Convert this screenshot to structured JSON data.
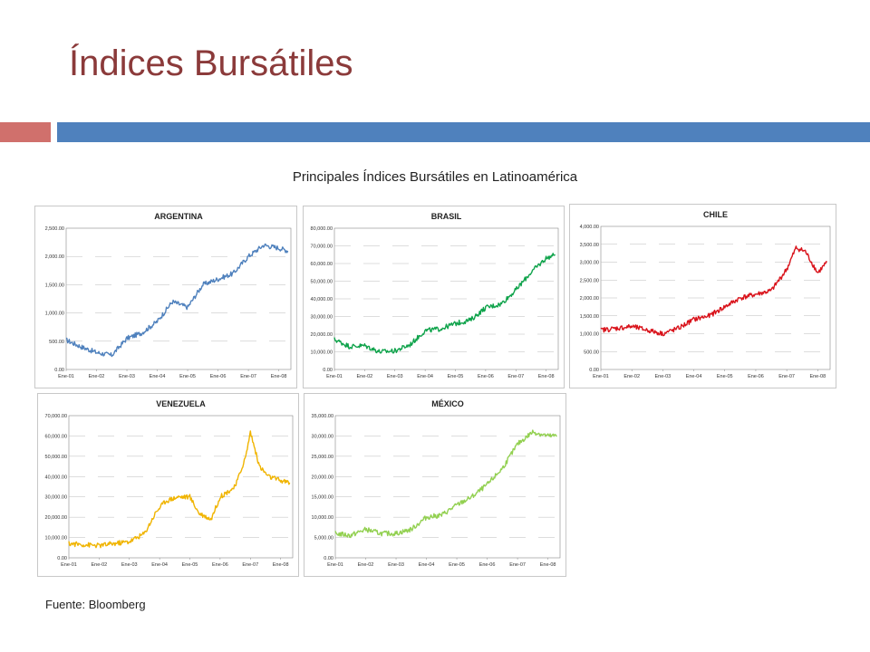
{
  "slide": {
    "title": "Índices Bursátiles",
    "subtitle": "Principales Índices Bursátiles en Latinoamérica",
    "source": "Fuente: Bloomberg",
    "accent_colors": {
      "title": "#8b3a3a",
      "bar_left": "#d0706c",
      "bar_right": "#4f81bd"
    }
  },
  "chart_data": [
    {
      "type": "line",
      "title": "ARGENTINA",
      "color": "#4f81bd",
      "ylim": [
        0,
        2500
      ],
      "yticks": [
        0,
        500,
        1000,
        1500,
        2000,
        2500
      ],
      "ytick_labels": [
        "0.00",
        "500.00",
        "1,000.00",
        "1,500.00",
        "2,000.00",
        "2,500.00"
      ],
      "xticks": [
        "Ene-01",
        "Ene-02",
        "Ene-03",
        "Ene-04",
        "Ene-05",
        "Ene-06",
        "Ene-07",
        "Ene-08"
      ],
      "x": [
        2001.0,
        2001.5,
        2002.0,
        2002.5,
        2003.0,
        2003.5,
        2004.0,
        2004.5,
        2005.0,
        2005.5,
        2006.0,
        2006.5,
        2007.0,
        2007.5,
        2008.0,
        2008.3
      ],
      "y": [
        520,
        400,
        300,
        250,
        550,
        650,
        850,
        1200,
        1100,
        1500,
        1600,
        1700,
        2000,
        2200,
        2150,
        2100
      ]
    },
    {
      "type": "line",
      "title": "BRASIL",
      "color": "#0fa34b",
      "ylim": [
        0,
        80000
      ],
      "yticks": [
        0,
        10000,
        20000,
        30000,
        40000,
        50000,
        60000,
        70000,
        80000
      ],
      "ytick_labels": [
        "0.00",
        "10,000.00",
        "20,000.00",
        "30,000.00",
        "40,000.00",
        "50,000.00",
        "60,000.00",
        "70,000.00",
        "80,000.00"
      ],
      "xticks": [
        "Ene-01",
        "Ene-02",
        "Ene-03",
        "Ene-04",
        "Ene-05",
        "Ene-06",
        "Ene-07",
        "Ene-08"
      ],
      "x": [
        2001.0,
        2001.5,
        2002.0,
        2002.5,
        2003.0,
        2003.5,
        2004.0,
        2004.5,
        2005.0,
        2005.5,
        2006.0,
        2006.5,
        2007.0,
        2007.5,
        2008.0,
        2008.3
      ],
      "y": [
        17000,
        13000,
        13500,
        10000,
        10500,
        14000,
        22000,
        23000,
        26000,
        28000,
        35000,
        37000,
        45000,
        55000,
        63000,
        65000
      ]
    },
    {
      "type": "line",
      "title": "CHILE",
      "color": "#d9131b",
      "ylim": [
        0,
        4000
      ],
      "yticks": [
        0,
        500,
        1000,
        1500,
        2000,
        2500,
        3000,
        3500,
        4000
      ],
      "ytick_labels": [
        "0.00",
        "500.00",
        "1,000.00",
        "1,500.00",
        "2,000.00",
        "2,500.00",
        "3,000.00",
        "3,500.00",
        "4,000.00"
      ],
      "xticks": [
        "Ene-01",
        "Ene-02",
        "Ene-03",
        "Ene-04",
        "Ene-05",
        "Ene-06",
        "Ene-07",
        "Ene-08"
      ],
      "x": [
        2001.0,
        2001.5,
        2002.0,
        2002.5,
        2003.0,
        2003.5,
        2004.0,
        2004.5,
        2005.0,
        2005.5,
        2006.0,
        2006.5,
        2007.0,
        2007.3,
        2007.6,
        2008.0,
        2008.3
      ],
      "y": [
        1100,
        1150,
        1200,
        1100,
        1000,
        1150,
        1400,
        1500,
        1750,
        2000,
        2100,
        2200,
        2800,
        3400,
        3300,
        2700,
        3000
      ]
    },
    {
      "type": "line",
      "title": "VENEZUELA",
      "color": "#f0b400",
      "ylim": [
        0,
        70000
      ],
      "yticks": [
        0,
        10000,
        20000,
        30000,
        40000,
        50000,
        60000,
        70000
      ],
      "ytick_labels": [
        "0.00",
        "10,000.00",
        "20,000.00",
        "30,000.00",
        "40,000.00",
        "50,000.00",
        "60,000.00",
        "70,000.00"
      ],
      "xticks": [
        "Ene-01",
        "Ene-02",
        "Ene-03",
        "Ene-04",
        "Ene-05",
        "Ene-06",
        "Ene-07",
        "Ene-08"
      ],
      "x": [
        2001.0,
        2001.5,
        2002.0,
        2002.5,
        2003.0,
        2003.5,
        2003.9,
        2004.2,
        2004.6,
        2005.0,
        2005.3,
        2005.7,
        2006.0,
        2006.5,
        2006.85,
        2007.0,
        2007.3,
        2007.6,
        2008.0,
        2008.3
      ],
      "y": [
        7000,
        6500,
        6000,
        7000,
        8000,
        12000,
        23000,
        28000,
        30000,
        30000,
        22000,
        19000,
        30000,
        35000,
        50000,
        62000,
        45000,
        40000,
        38000,
        37000
      ]
    },
    {
      "type": "line",
      "title": "MÉXICO",
      "color": "#92d050",
      "ylim": [
        0,
        35000
      ],
      "yticks": [
        0,
        5000,
        10000,
        15000,
        20000,
        25000,
        30000,
        35000
      ],
      "ytick_labels": [
        "0.00",
        "5,000.00",
        "10,000.00",
        "15,000.00",
        "20,000.00",
        "25,000.00",
        "30,000.00",
        "35,000.00"
      ],
      "xticks": [
        "Ene-01",
        "Ene-02",
        "Ene-03",
        "Ene-04",
        "Ene-05",
        "Ene-06",
        "Ene-07",
        "Ene-08"
      ],
      "x": [
        2001.0,
        2001.5,
        2002.0,
        2002.5,
        2003.0,
        2003.5,
        2004.0,
        2004.5,
        2005.0,
        2005.5,
        2006.0,
        2006.5,
        2007.0,
        2007.5,
        2008.0,
        2008.3
      ],
      "y": [
        6000,
        5500,
        7000,
        6000,
        6000,
        7000,
        10000,
        10500,
        13000,
        15000,
        18000,
        22000,
        28000,
        31000,
        30000,
        30000
      ]
    }
  ]
}
